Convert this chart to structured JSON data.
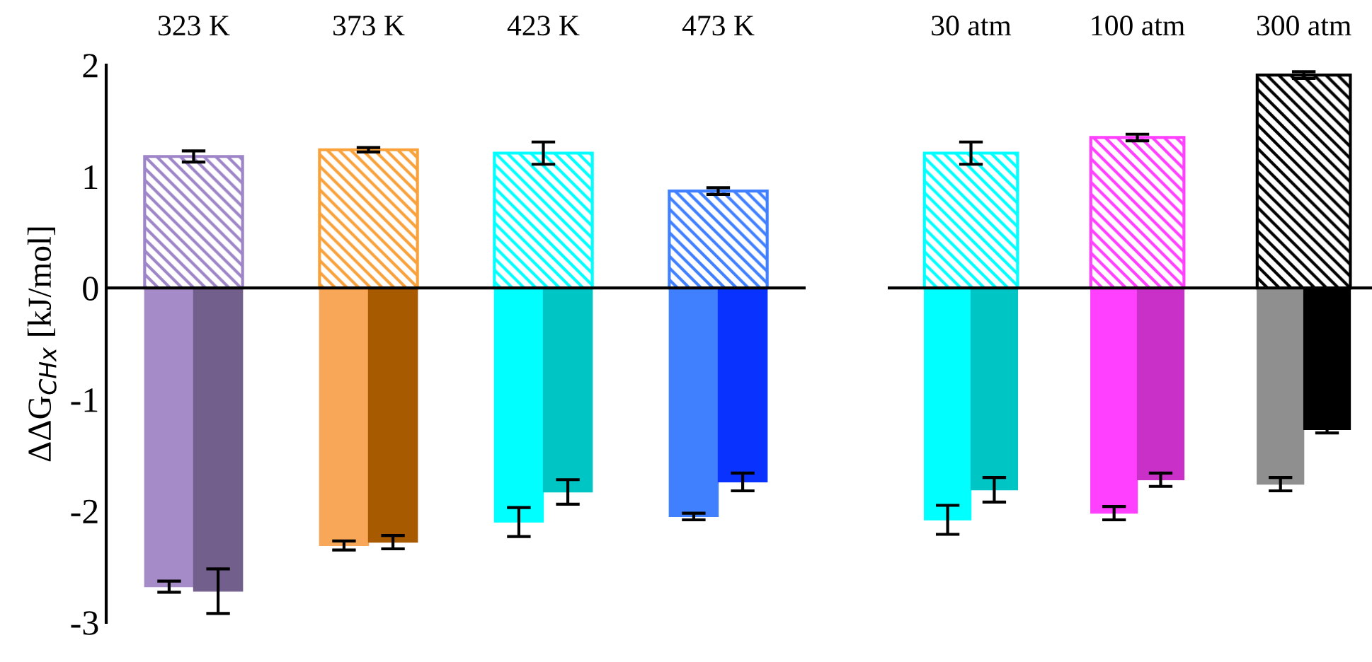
{
  "chart_data": [
    {
      "type": "bar",
      "ylabel": "ΔΔG$_{CHx}$ [kJ/mol]",
      "categories": [
        "323 K",
        "373 K",
        "423 K",
        "473 K"
      ],
      "ylim": [
        -3,
        2
      ],
      "yticks": [
        -3,
        -2,
        -1,
        0,
        1,
        2
      ],
      "ref_lines": [
        {
          "axis": "y",
          "value": 0,
          "color": "#000000"
        }
      ],
      "legend": false,
      "series": [
        {
          "colors": [
            "#9e85c8",
            "#f9a13a",
            "#00ffff",
            "#4080ff"
          ],
          "values": [
            1.18,
            1.24,
            1.21,
            0.87
          ],
          "errors": [
            0.05,
            0.02,
            0.1,
            0.03
          ]
        },
        {
          "colors": [
            "#a68bc9",
            "#f8a758",
            "#00ffff",
            "#4080ff"
          ],
          "values": [
            -2.68,
            -2.31,
            -2.1,
            -2.05
          ],
          "errors": [
            0.05,
            0.04,
            0.13,
            0.03
          ]
        },
        {
          "colors": [
            "#735f8c",
            "#a85a00",
            "#00c5c5",
            "#0a32ff"
          ],
          "values": [
            -2.72,
            -2.28,
            -1.83,
            -1.74
          ],
          "errors": [
            0.2,
            0.06,
            0.11,
            0.08
          ]
        }
      ]
    },
    {
      "type": "bar",
      "categories": [
        "30 atm",
        "100 atm",
        "300 atm"
      ],
      "ylim": [
        -3,
        2
      ],
      "tick_labels": "x",
      "ref_lines": [
        {
          "axis": "y",
          "value": 0,
          "color": "#000000"
        }
      ],
      "legend": false,
      "series": [
        {
          "colors": [
            "#00ffff",
            "#ff40ff",
            "#000000"
          ],
          "values": [
            1.21,
            1.35,
            1.91
          ],
          "errors": [
            0.1,
            0.03,
            0.03
          ]
        },
        {
          "colors": [
            "#00ffff",
            "#ff40ff",
            "#8f8f8f"
          ],
          "values": [
            -2.08,
            -2.02,
            -1.76
          ],
          "errors": [
            0.13,
            0.06,
            0.06
          ]
        },
        {
          "colors": [
            "#00c5c5",
            "#c830c8",
            "#000000"
          ],
          "values": [
            -1.81,
            -1.72,
            -1.27
          ],
          "errors": [
            0.11,
            0.06,
            0.03
          ]
        }
      ]
    }
  ]
}
